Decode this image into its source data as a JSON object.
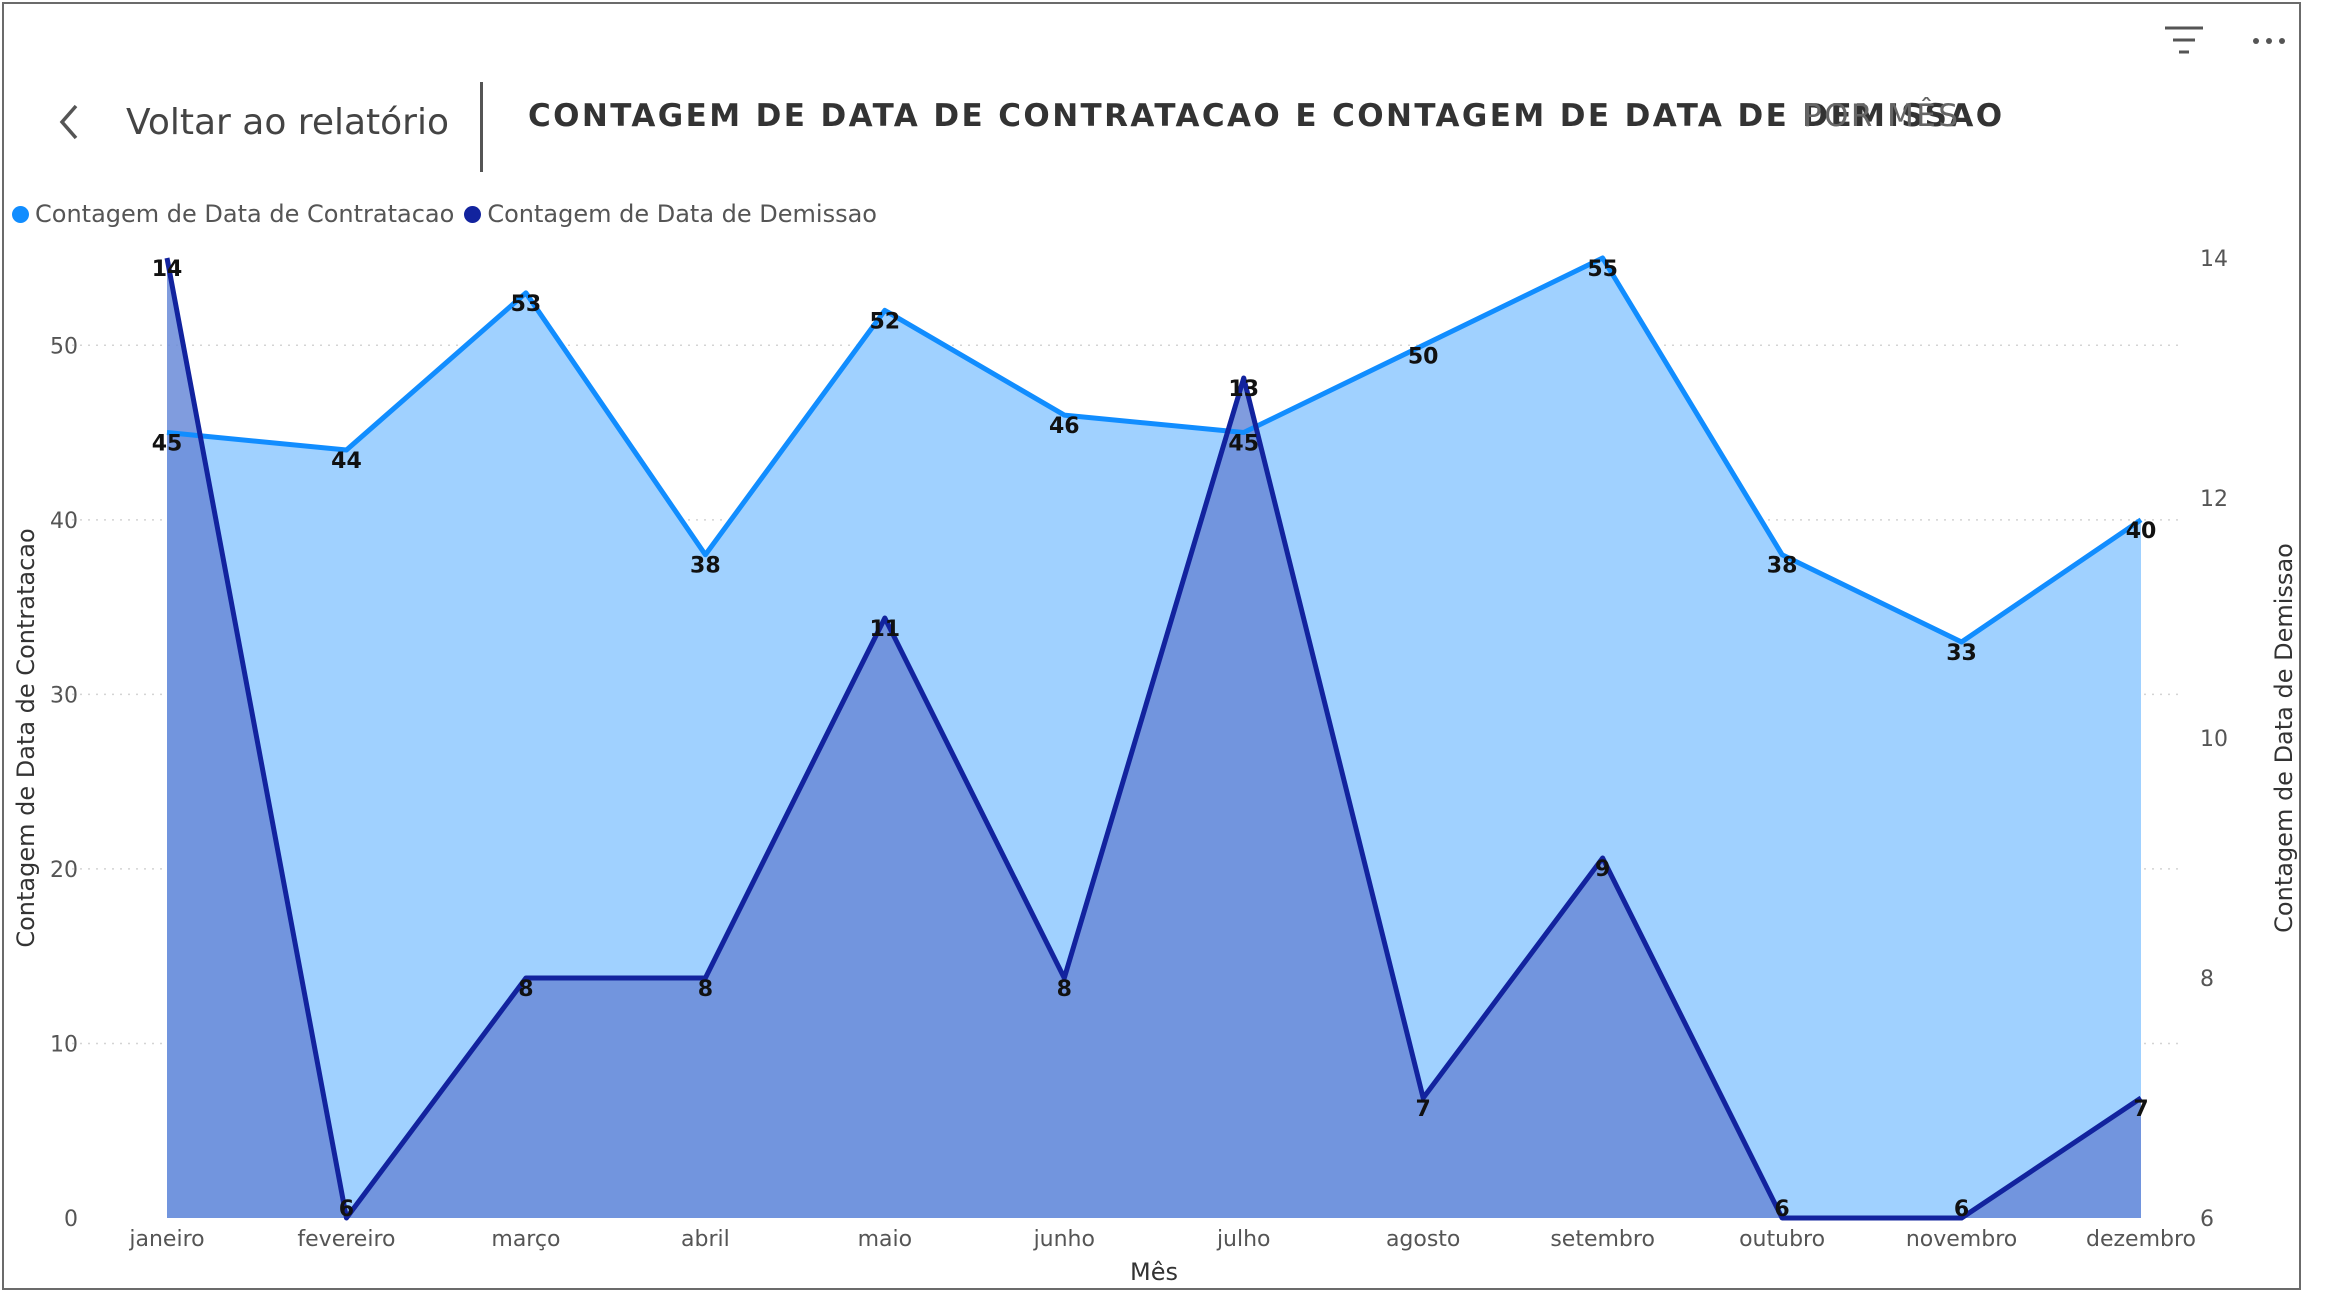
{
  "header": {
    "back_label": "Voltar ao relatório",
    "title": "CONTAGEM DE DATA DE CONTRATACAO E CONTAGEM DE DATA DE DEMISSAO",
    "subtitle": "POR MÊS"
  },
  "toolbar": {
    "filter_icon": "filter-icon",
    "more_icon": "more-options-icon"
  },
  "chart_data": {
    "type": "area",
    "title": "CONTAGEM DE DATA DE CONTRATACAO E CONTAGEM DE DATA DE DEMISSAO POR MÊS",
    "xlabel": "Mês",
    "ylabel": "Contagem de Data de Contratacao",
    "y2label": "Contagem de Data de Demissao",
    "categories": [
      "janeiro",
      "fevereiro",
      "março",
      "abril",
      "maio",
      "junho",
      "julho",
      "agosto",
      "setembro",
      "outubro",
      "novembro",
      "dezembro"
    ],
    "series": [
      {
        "name": "Contagem de Data de Contratacao",
        "axis": "left",
        "color": "#118DFF",
        "fill": "#A0D1FF",
        "values": [
          45,
          44,
          53,
          38,
          52,
          46,
          45,
          50,
          55,
          38,
          33,
          40
        ]
      },
      {
        "name": "Contagem de Data de Demissao",
        "axis": "right",
        "color": "#12239E",
        "fill": "#6A8BD8",
        "values": [
          14,
          6,
          8,
          8,
          11,
          8,
          13,
          7,
          9,
          6,
          6,
          7
        ]
      }
    ],
    "ylim": [
      0,
      55
    ],
    "yticks": [
      0,
      10,
      20,
      30,
      40,
      50
    ],
    "y2lim": [
      6,
      14
    ],
    "y2ticks": [
      6,
      8,
      10,
      12,
      14
    ],
    "grid": true,
    "legend_position": "top-left"
  }
}
